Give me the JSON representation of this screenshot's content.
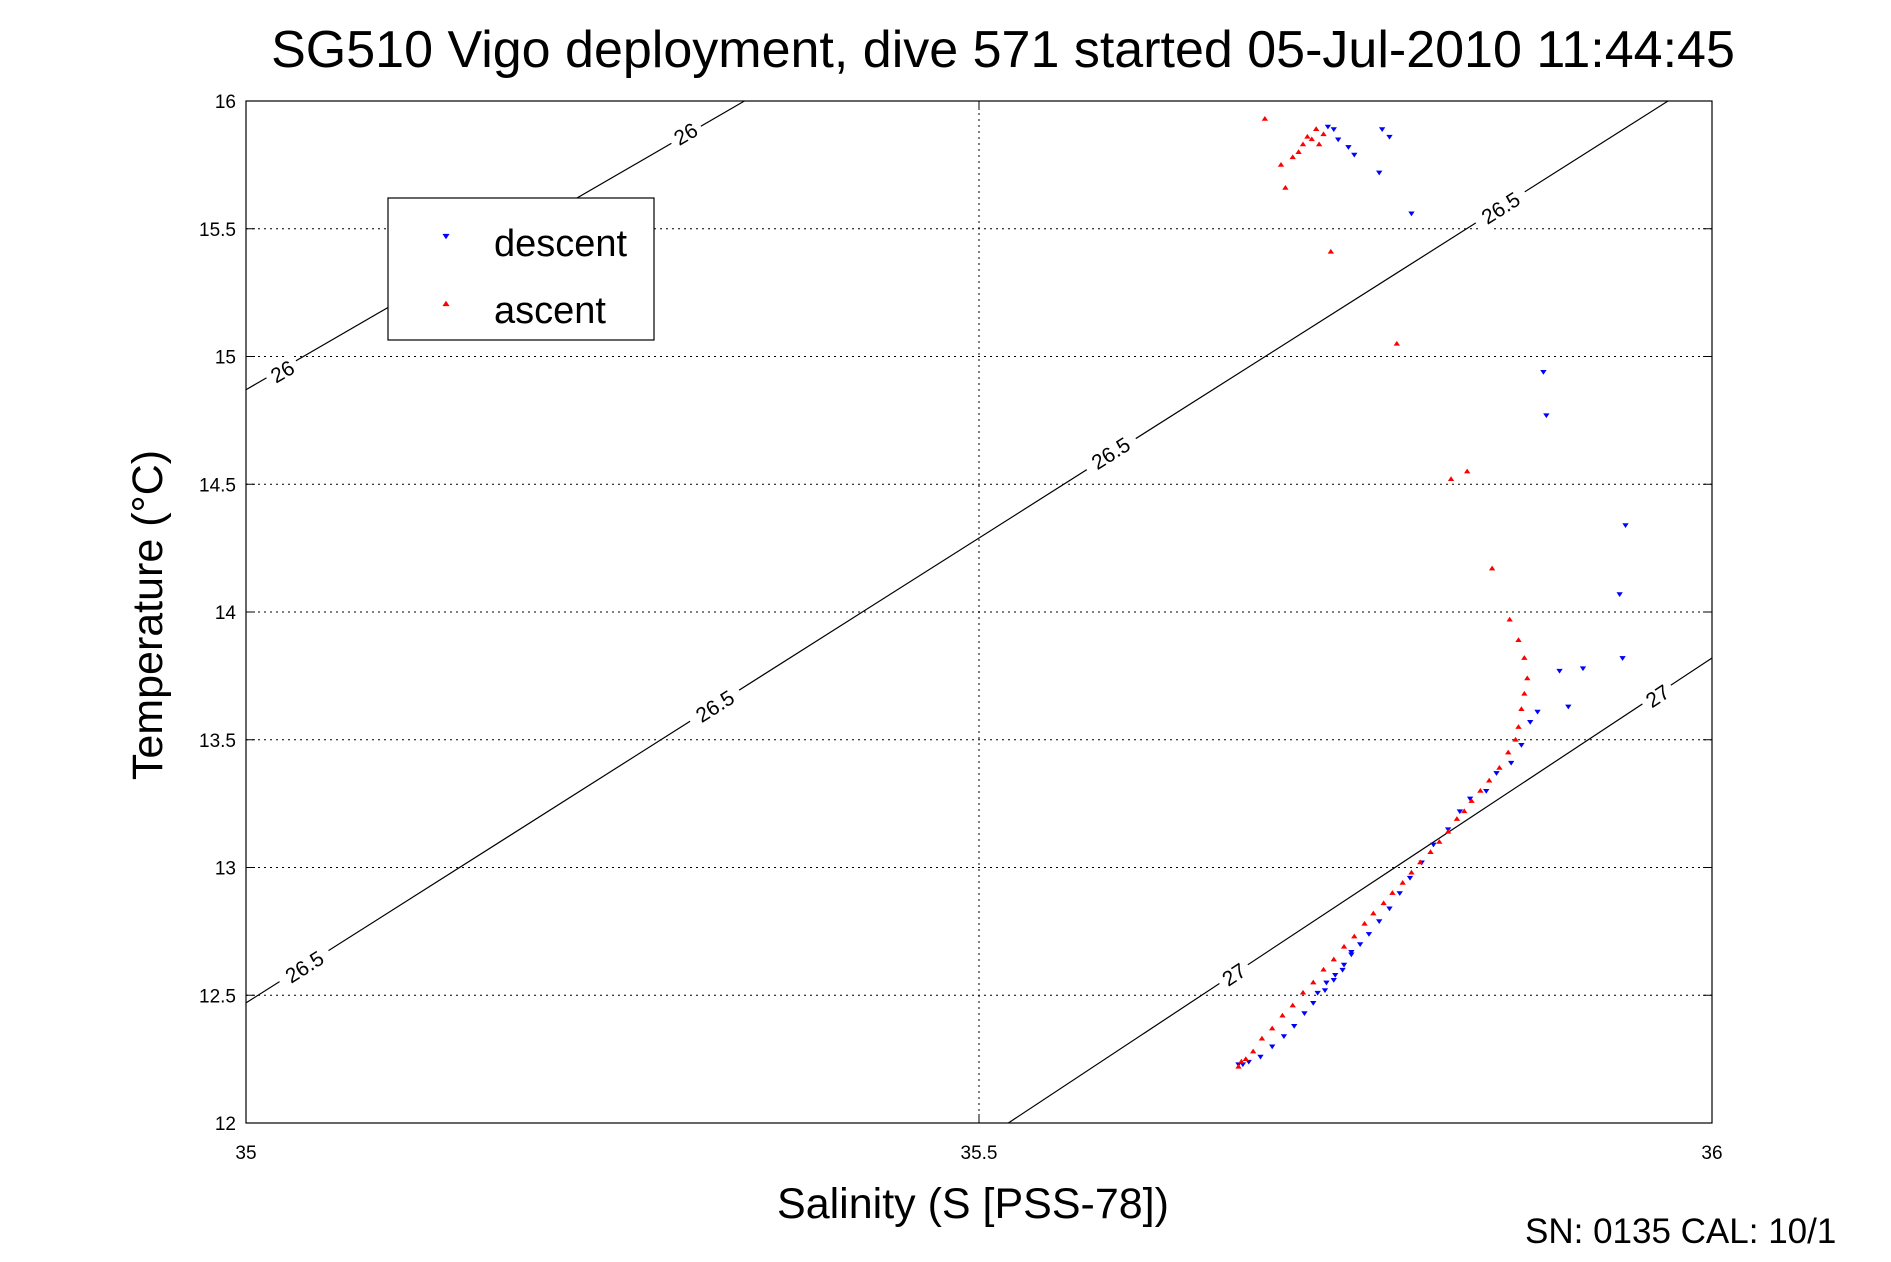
{
  "chart_data": {
    "type": "scatter",
    "title": "SG510 Vigo deployment, dive 571 started 05-Jul-2010 11:44:45",
    "xlabel": "Salinity (S [PSS-78])",
    "ylabel": "Temperature (°C)",
    "xlim": [
      35,
      36
    ],
    "ylim": [
      12,
      16
    ],
    "x_ticks": [
      "35",
      "35.5",
      "36"
    ],
    "y_ticks": [
      "12",
      "12.5",
      "13",
      "13.5",
      "14",
      "14.5",
      "15",
      "15.5",
      "16"
    ],
    "grid": true,
    "legend_position": "top-left",
    "series": [
      {
        "name": "descent",
        "color": "#0000ff",
        "marker": "triangle-down",
        "points": [
          [
            35.738,
            15.9
          ],
          [
            35.742,
            15.89
          ],
          [
            35.745,
            15.85
          ],
          [
            35.752,
            15.82
          ],
          [
            35.756,
            15.79
          ],
          [
            35.773,
            15.72
          ],
          [
            35.775,
            15.89
          ],
          [
            35.78,
            15.86
          ],
          [
            35.795,
            15.56
          ],
          [
            35.885,
            14.94
          ],
          [
            35.887,
            14.77
          ],
          [
            35.941,
            14.34
          ],
          [
            35.937,
            14.07
          ],
          [
            35.939,
            13.82
          ],
          [
            35.896,
            13.77
          ],
          [
            35.912,
            13.78
          ],
          [
            35.902,
            13.63
          ],
          [
            35.881,
            13.61
          ],
          [
            35.876,
            13.57
          ],
          [
            35.87,
            13.48
          ],
          [
            35.863,
            13.41
          ],
          [
            35.853,
            13.37
          ],
          [
            35.846,
            13.3
          ],
          [
            35.835,
            13.27
          ],
          [
            35.828,
            13.22
          ],
          [
            35.82,
            13.15
          ],
          [
            35.81,
            13.09
          ],
          [
            35.802,
            13.02
          ],
          [
            35.794,
            12.96
          ],
          [
            35.787,
            12.9
          ],
          [
            35.78,
            12.84
          ],
          [
            35.773,
            12.79
          ],
          [
            35.766,
            12.74
          ],
          [
            35.76,
            12.7
          ],
          [
            35.754,
            12.66
          ],
          [
            35.749,
            12.62
          ],
          [
            35.743,
            12.58
          ],
          [
            35.737,
            12.55
          ],
          [
            35.731,
            12.51
          ],
          [
            35.754,
            12.67
          ],
          [
            35.748,
            12.6
          ],
          [
            35.742,
            12.56
          ],
          [
            35.736,
            12.52
          ],
          [
            35.728,
            12.47
          ],
          [
            35.722,
            12.43
          ],
          [
            35.715,
            12.38
          ],
          [
            35.708,
            12.34
          ],
          [
            35.7,
            12.3
          ],
          [
            35.692,
            12.26
          ],
          [
            35.684,
            12.24
          ],
          [
            35.68,
            12.23
          ],
          [
            35.677,
            12.23
          ]
        ]
      },
      {
        "name": "ascent",
        "color": "#ff0000",
        "marker": "triangle-up",
        "points": [
          [
            35.695,
            15.93
          ],
          [
            35.706,
            15.75
          ],
          [
            35.709,
            15.66
          ],
          [
            35.714,
            15.78
          ],
          [
            35.718,
            15.8
          ],
          [
            35.721,
            15.83
          ],
          [
            35.724,
            15.86
          ],
          [
            35.727,
            15.85
          ],
          [
            35.73,
            15.89
          ],
          [
            35.732,
            15.83
          ],
          [
            35.735,
            15.87
          ],
          [
            35.74,
            15.41
          ],
          [
            35.785,
            15.05
          ],
          [
            35.822,
            14.52
          ],
          [
            35.833,
            14.55
          ],
          [
            35.85,
            14.17
          ],
          [
            35.862,
            13.97
          ],
          [
            35.868,
            13.89
          ],
          [
            35.872,
            13.82
          ],
          [
            35.874,
            13.74
          ],
          [
            35.872,
            13.68
          ],
          [
            35.87,
            13.62
          ],
          [
            35.868,
            13.55
          ],
          [
            35.866,
            13.5
          ],
          [
            35.861,
            13.45
          ],
          [
            35.855,
            13.39
          ],
          [
            35.848,
            13.34
          ],
          [
            35.842,
            13.3
          ],
          [
            35.836,
            13.26
          ],
          [
            35.831,
            13.22
          ],
          [
            35.826,
            13.19
          ],
          [
            35.82,
            13.14
          ],
          [
            35.814,
            13.1
          ],
          [
            35.808,
            13.06
          ],
          [
            35.801,
            13.02
          ],
          [
            35.795,
            12.98
          ],
          [
            35.789,
            12.94
          ],
          [
            35.782,
            12.9
          ],
          [
            35.776,
            12.86
          ],
          [
            35.769,
            12.82
          ],
          [
            35.763,
            12.78
          ],
          [
            35.756,
            12.73
          ],
          [
            35.749,
            12.69
          ],
          [
            35.742,
            12.64
          ],
          [
            35.735,
            12.6
          ],
          [
            35.728,
            12.55
          ],
          [
            35.721,
            12.51
          ],
          [
            35.714,
            12.46
          ],
          [
            35.707,
            12.42
          ],
          [
            35.7,
            12.37
          ],
          [
            35.693,
            12.33
          ],
          [
            35.687,
            12.28
          ],
          [
            35.682,
            12.25
          ],
          [
            35.679,
            12.24
          ],
          [
            35.677,
            12.22
          ]
        ]
      }
    ],
    "density_contours": [
      {
        "label": "26",
        "line": [
          [
            35.0,
            14.87
          ],
          [
            35.34,
            16.0
          ]
        ],
        "label_positions": [
          [
            35.025,
            14.94
          ],
          [
            35.3,
            15.87
          ]
        ]
      },
      {
        "label": "26.5",
        "line": [
          [
            35.0,
            12.47
          ],
          [
            35.97,
            16.0
          ]
        ],
        "label_positions": [
          [
            35.04,
            12.61
          ],
          [
            35.32,
            13.63
          ],
          [
            35.59,
            14.62
          ],
          [
            35.856,
            15.58
          ]
        ]
      },
      {
        "label": "27",
        "line": [
          [
            35.52,
            12.0
          ],
          [
            36.0,
            13.82
          ]
        ],
        "label_positions": [
          [
            35.674,
            12.58
          ],
          [
            35.963,
            13.67
          ]
        ]
      }
    ],
    "footer": "SN: 0135  CAL: 10/1"
  }
}
